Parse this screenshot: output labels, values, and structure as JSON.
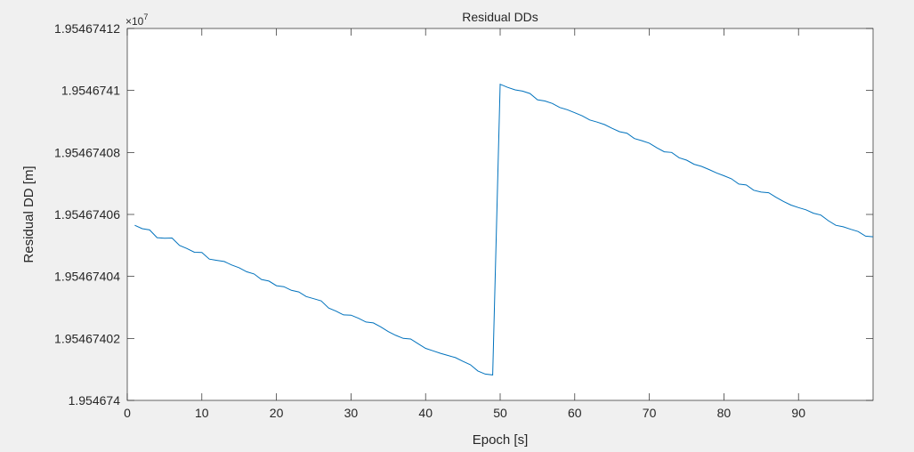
{
  "chart_data": {
    "type": "line",
    "title": "Residual DDs",
    "xlabel": "Epoch [s]",
    "ylabel": "Residual DD [m]",
    "exponent_base": "×10",
    "exponent_power": "7",
    "xlim": [
      0,
      100
    ],
    "ylim": [
      1.954674,
      1.9546741200000002
    ],
    "xticks": [
      0,
      10,
      20,
      30,
      40,
      50,
      60,
      70,
      80,
      90
    ],
    "xtick_labels": [
      "0",
      "10",
      "20",
      "30",
      "40",
      "50",
      "60",
      "70",
      "80",
      "90"
    ],
    "yticks": [
      1.954674,
      1.9546740200000001,
      1.95467404,
      1.95467406,
      1.95467408,
      1.9546741,
      1.95467412
    ],
    "ytick_labels": [
      "1.954674",
      "1.95467402",
      "1.95467404",
      "1.95467406",
      "1.95467408",
      "1.9546741",
      "1.95467412"
    ],
    "grid": false,
    "line_color": "#0072bd",
    "series": [
      {
        "x": [
          1,
          2,
          3,
          4,
          5,
          6,
          7,
          8,
          9,
          10,
          11,
          12,
          13,
          14,
          15,
          16,
          17,
          18,
          19,
          20,
          21,
          22,
          23,
          24,
          25,
          26,
          27,
          28,
          29,
          30,
          31,
          32,
          33,
          34,
          35,
          36,
          37,
          38,
          39,
          40,
          41,
          42,
          43,
          44,
          45,
          46,
          47,
          48,
          49,
          50,
          51,
          52,
          53,
          54,
          55,
          56,
          57,
          58,
          59,
          60,
          61,
          62,
          63,
          64,
          65,
          66,
          67,
          68,
          69,
          70,
          71,
          72,
          73,
          74,
          75,
          76,
          77,
          78,
          79,
          80,
          81,
          82,
          83,
          84,
          85,
          86,
          87,
          88,
          89,
          90,
          91,
          92,
          93,
          94,
          95,
          96,
          97,
          98,
          99,
          100
        ],
        "values": [
          5.65,
          5.54,
          5.5,
          5.25,
          5.23,
          5.24,
          5.0,
          4.9,
          4.78,
          4.77,
          4.56,
          4.52,
          4.48,
          4.37,
          4.28,
          4.15,
          4.08,
          3.9,
          3.85,
          3.7,
          3.67,
          3.55,
          3.5,
          3.35,
          3.28,
          3.21,
          2.98,
          2.88,
          2.76,
          2.75,
          2.65,
          2.53,
          2.5,
          2.37,
          2.22,
          2.1,
          2.0,
          1.98,
          1.83,
          1.68,
          1.6,
          1.52,
          1.45,
          1.38,
          1.26,
          1.15,
          0.95,
          0.85,
          0.82,
          10.2,
          10.1,
          10.02,
          9.98,
          9.9,
          9.7,
          9.66,
          9.58,
          9.45,
          9.38,
          9.28,
          9.18,
          9.05,
          8.98,
          8.9,
          8.78,
          8.67,
          8.62,
          8.45,
          8.38,
          8.3,
          8.15,
          8.02,
          8.0,
          7.83,
          7.75,
          7.62,
          7.55,
          7.45,
          7.34,
          7.25,
          7.15,
          6.98,
          6.95,
          6.78,
          6.72,
          6.7,
          6.55,
          6.42,
          6.3,
          6.22,
          6.15,
          6.04,
          5.98,
          5.8,
          5.65,
          5.6,
          5.52,
          5.45,
          5.3,
          5.28
        ],
        "value_offset": 1.954674,
        "value_unit_note": "×1e-8 then ×1e7 scaling"
      }
    ]
  }
}
